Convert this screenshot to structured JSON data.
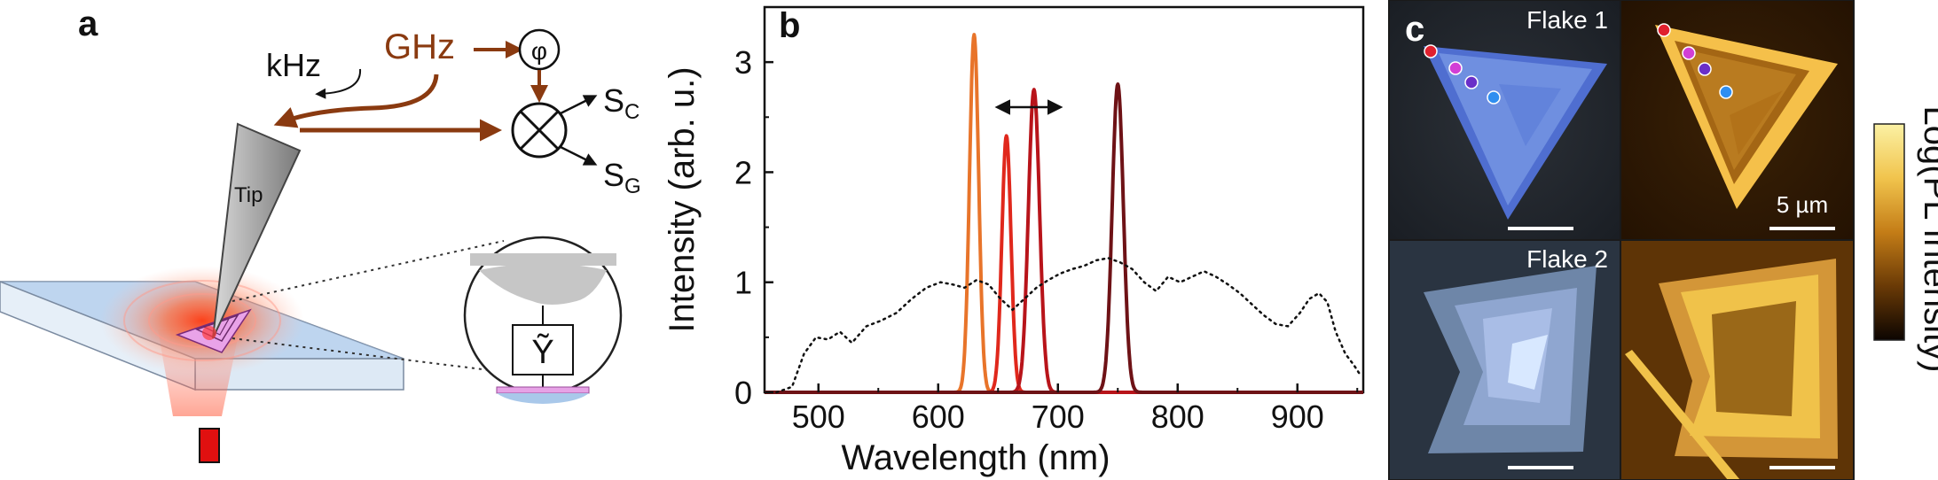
{
  "panels": {
    "a": {
      "label": "a",
      "khz": "kHz",
      "ghz": "GHz",
      "phi": "φ",
      "sc_main": "S",
      "sc_sub": "C",
      "sg_main": "S",
      "sg_sub": "G",
      "tip": "Tip",
      "y_symbol": "Ỹ"
    },
    "b": {
      "label": "b"
    },
    "c": {
      "label": "c",
      "flake1": "Flake 1",
      "flake2": "Flake 2",
      "scalebar": "5 µm",
      "colorbar_label": "Log(PL Intensity)",
      "colors": {
        "blue_flake": "#6f8fe0",
        "gold_flake": "#f5c04a",
        "dot1": "#e0202e",
        "dot2": "#d23fd6",
        "dot3": "#6a2fc8",
        "dot4": "#2f8ef0"
      }
    }
  },
  "chart_data": {
    "type": "line",
    "title": "",
    "xlabel": "Wavelength (nm)",
    "ylabel": "Intensity (arb. u.)",
    "xlim": [
      455,
      955
    ],
    "ylim": [
      0,
      3.5
    ],
    "xticks": [
      500,
      600,
      700,
      800,
      900
    ],
    "yticks": [
      0,
      1,
      2,
      3
    ],
    "grid": false,
    "series": [
      {
        "kind": "gaussian",
        "center": 630,
        "amplitude": 3.25,
        "fwhm": 9,
        "color": "#e8742a"
      },
      {
        "kind": "gaussian",
        "center": 657,
        "amplitude": 2.33,
        "fwhm": 9,
        "color": "#e0281c"
      },
      {
        "kind": "gaussian",
        "center": 680,
        "amplitude": 2.75,
        "fwhm": 11,
        "color": "#b8141a"
      },
      {
        "kind": "gaussian",
        "center": 750,
        "amplitude": 2.8,
        "fwhm": 11,
        "color": "#6e1216"
      },
      {
        "kind": "dotted",
        "color": "#111111",
        "x": [
          465,
          478,
          488,
          498,
          508,
          518,
          528,
          540,
          552,
          565,
          578,
          590,
          602,
          612,
          622,
          632,
          642,
          652,
          662,
          672,
          682,
          692,
          702,
          712,
          722,
          732,
          742,
          752,
          762,
          772,
          782,
          792,
          802,
          812,
          822,
          832,
          842,
          852,
          862,
          872,
          882,
          892,
          902,
          910,
          918,
          925,
          932,
          940,
          947,
          953
        ],
        "y": [
          0.0,
          0.05,
          0.35,
          0.5,
          0.48,
          0.55,
          0.45,
          0.6,
          0.65,
          0.72,
          0.85,
          0.95,
          1.0,
          0.98,
          0.95,
          1.02,
          0.98,
          0.85,
          0.75,
          0.85,
          0.95,
          1.02,
          1.08,
          1.12,
          1.15,
          1.2,
          1.22,
          1.18,
          1.12,
          1.0,
          0.92,
          1.05,
          1.0,
          1.05,
          1.1,
          1.05,
          0.98,
          0.9,
          0.8,
          0.7,
          0.62,
          0.6,
          0.72,
          0.85,
          0.9,
          0.82,
          0.55,
          0.35,
          0.25,
          0.15
        ]
      }
    ]
  }
}
